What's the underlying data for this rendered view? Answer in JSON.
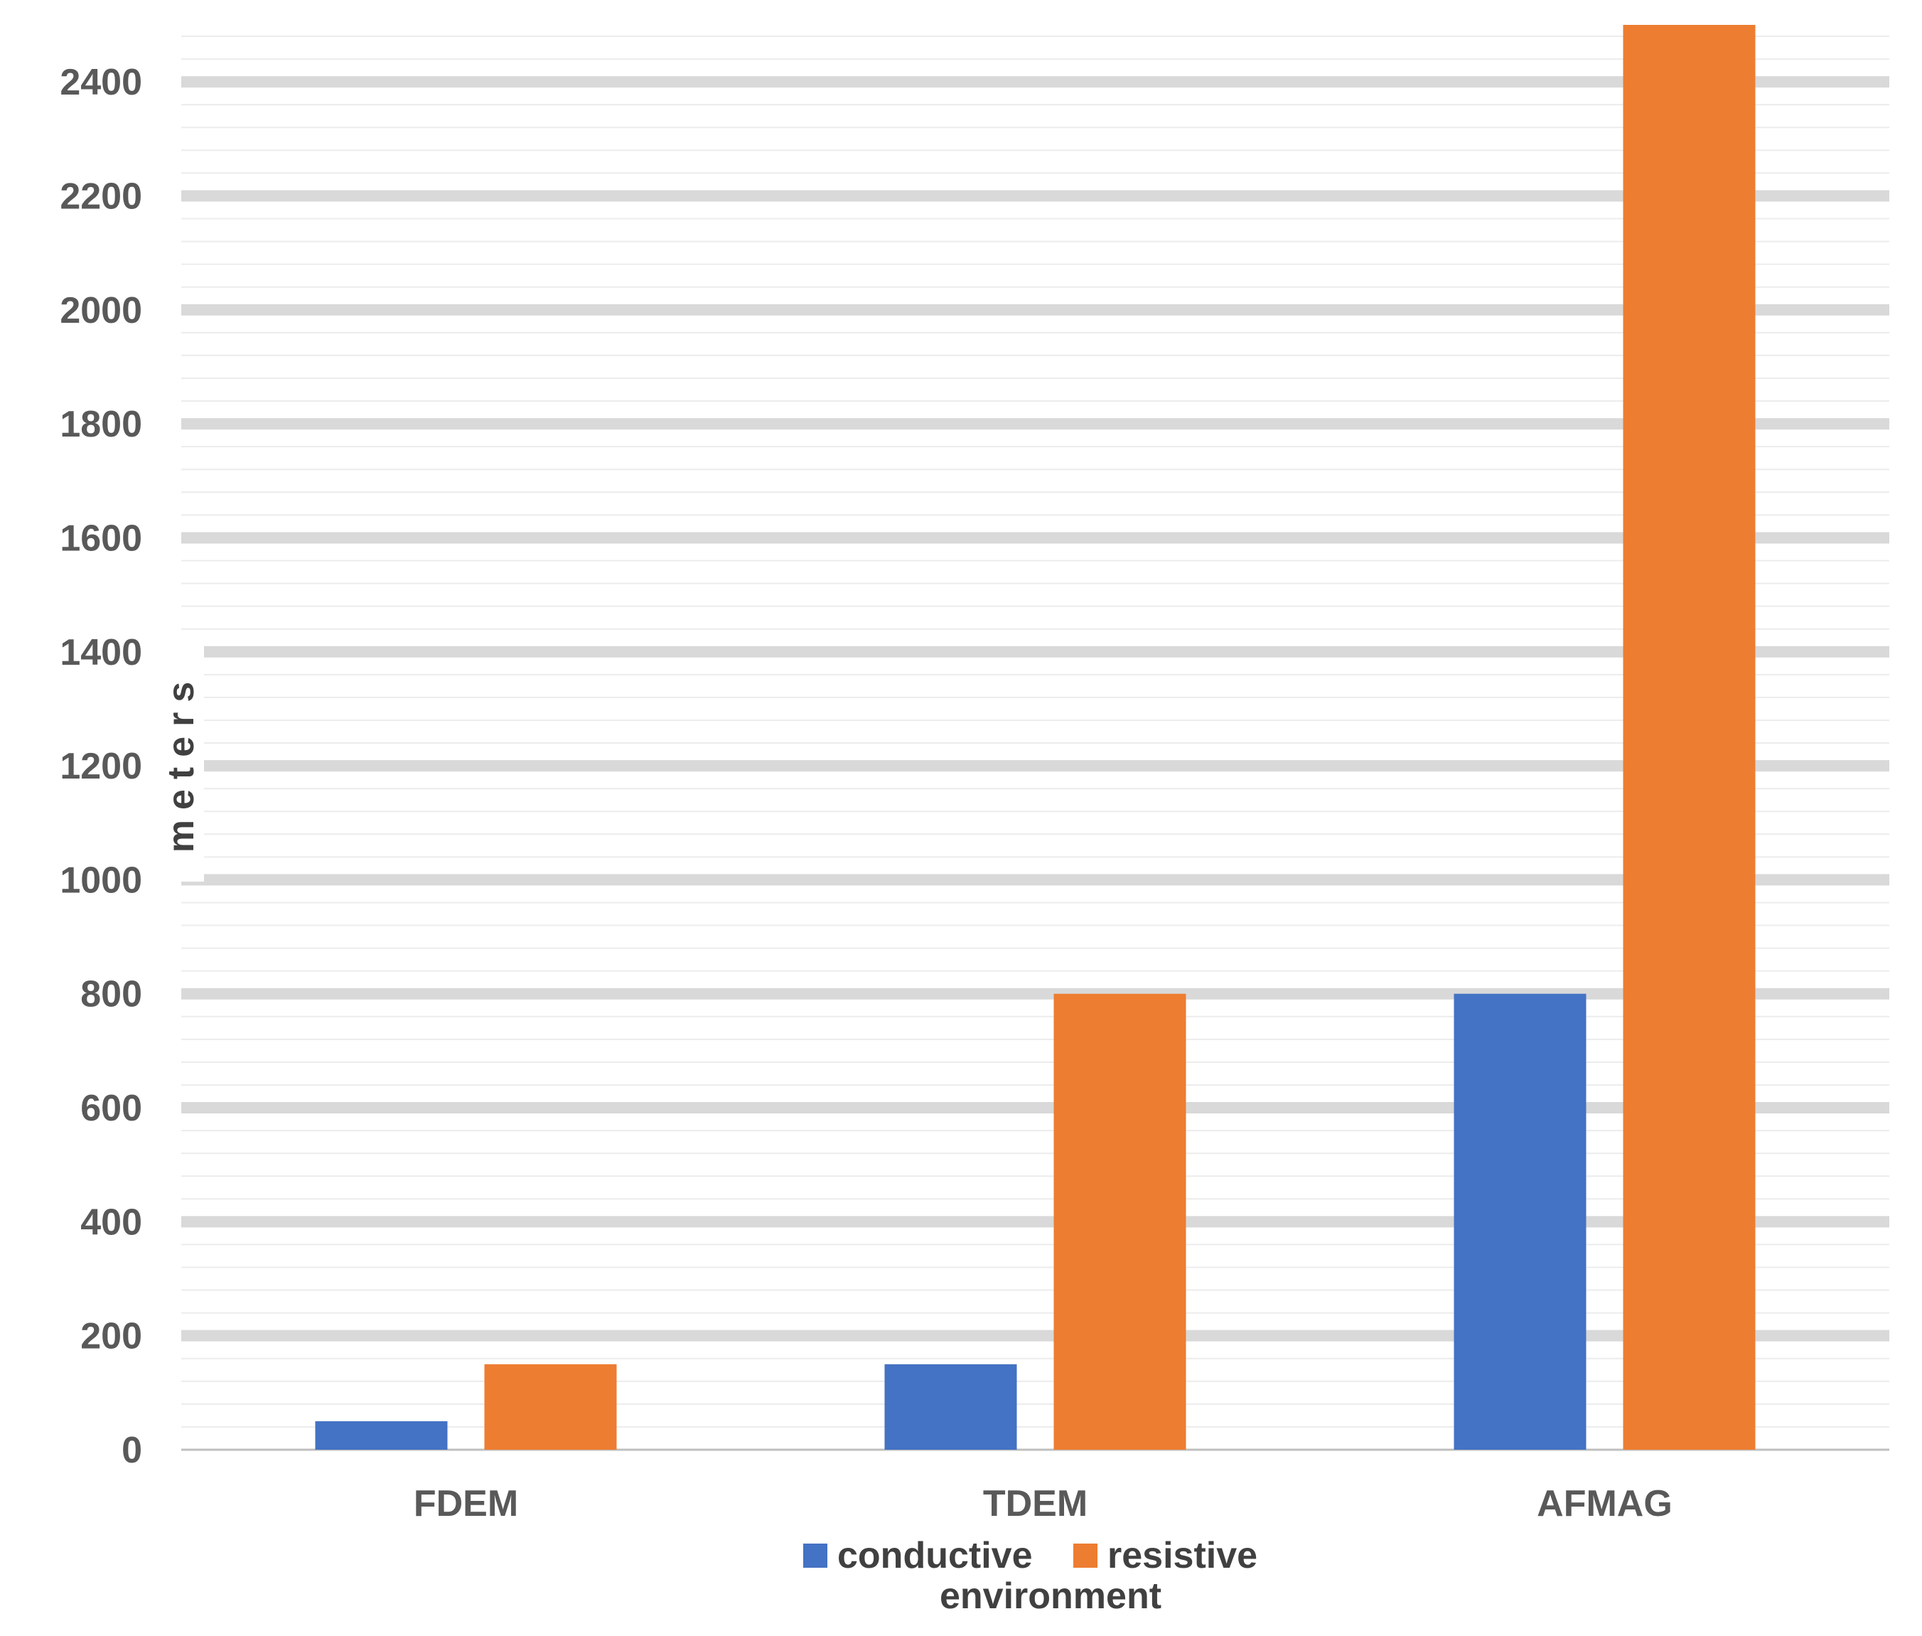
{
  "chart_data": {
    "type": "bar",
    "categories": [
      "FDEM",
      "TDEM",
      "AFMAG"
    ],
    "series": [
      {
        "name": "conductive",
        "color": "#4472C4",
        "values": [
          50,
          150,
          800
        ]
      },
      {
        "name": "resistive",
        "color": "#ED7D31",
        "values": [
          150,
          800,
          2500
        ]
      }
    ],
    "ylabel": "meters",
    "xlabel": "environment",
    "ylim": [
      0,
      2500
    ],
    "yticks": [
      0,
      200,
      400,
      600,
      800,
      1000,
      1200,
      1400,
      1600,
      1800,
      2000,
      2200,
      2400
    ],
    "grid": true,
    "legend_position": "bottom"
  }
}
